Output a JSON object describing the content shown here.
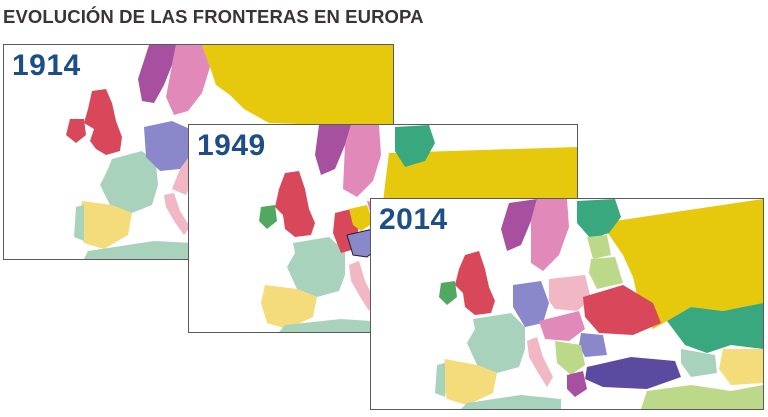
{
  "title": "EVOLUCIÓN DE LAS FRONTERAS EN EUROPA",
  "colors": {
    "year_text": "#1d4f86",
    "title_text": "#3a3434",
    "water": "#ffffff",
    "yellow": "#e6c80d",
    "magenta": "#a7509f",
    "pink": "#e18ab9",
    "red": "#d9475a",
    "teal_green": "#3aa87e",
    "sage": "#a9d2bd",
    "periwinkle": "#8a87cb",
    "sand": "#f4dc7a",
    "light_pink": "#f2b7c4",
    "green": "#51a860",
    "purple": "#5a4aa0",
    "lime": "#bcd98a"
  },
  "maps": [
    {
      "year": "1914"
    },
    {
      "year": "1949"
    },
    {
      "year": "2014"
    }
  ]
}
